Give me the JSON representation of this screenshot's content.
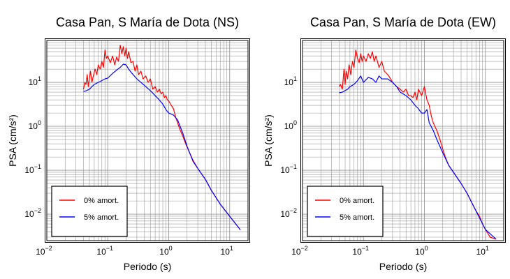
{
  "chart_data": [
    {
      "type": "line",
      "title": "Casa Pan, S María de Dota (NS)",
      "xlabel": "Periodo (s)",
      "ylabel": "PSA (cm/s²)",
      "xscale": "log",
      "yscale": "log",
      "xlim": [
        0.01,
        20
      ],
      "ylim": [
        0.0025,
        90
      ],
      "x_ticks": [
        {
          "v": 0.01,
          "b": "10",
          "e": "−2"
        },
        {
          "v": 0.1,
          "b": "10",
          "e": "−1"
        },
        {
          "v": 1,
          "b": "10",
          "e": "0"
        },
        {
          "v": 10,
          "b": "10",
          "e": "1"
        }
      ],
      "y_ticks": [
        {
          "v": 0.01,
          "b": "10",
          "e": "−2"
        },
        {
          "v": 0.1,
          "b": "10",
          "e": "−1"
        },
        {
          "v": 1,
          "b": "10",
          "e": "0"
        },
        {
          "v": 10,
          "b": "10",
          "e": "1"
        }
      ],
      "grid": true,
      "legend_position": "bottom-left",
      "series": [
        {
          "name": "0% amort.",
          "color": "#ff0000",
          "x": [
            0.04,
            0.042,
            0.044,
            0.046,
            0.048,
            0.05,
            0.052,
            0.055,
            0.058,
            0.062,
            0.066,
            0.07,
            0.075,
            0.08,
            0.085,
            0.09,
            0.095,
            0.1,
            0.11,
            0.12,
            0.13,
            0.14,
            0.15,
            0.16,
            0.17,
            0.18,
            0.19,
            0.2,
            0.21,
            0.22,
            0.24,
            0.26,
            0.28,
            0.3,
            0.32,
            0.35,
            0.38,
            0.42,
            0.46,
            0.5,
            0.55,
            0.6,
            0.65,
            0.7,
            0.75,
            0.8,
            0.85,
            0.9,
            0.95,
            1.0,
            1.1,
            1.2,
            1.3,
            1.4,
            1.5,
            1.7,
            1.9,
            2.2,
            2.5,
            3,
            4,
            5,
            7,
            10,
            15
          ],
          "values": [
            7,
            10,
            9,
            15,
            8,
            12,
            18,
            10,
            14,
            20,
            15,
            25,
            20,
            30,
            22,
            55,
            35,
            40,
            28,
            40,
            25,
            38,
            30,
            70,
            45,
            65,
            40,
            60,
            35,
            50,
            28,
            30,
            18,
            25,
            15,
            18,
            12,
            14,
            10,
            12,
            7,
            8,
            6,
            7,
            5.5,
            6,
            4.5,
            5,
            4,
            3.8,
            3,
            2.5,
            1.6,
            1.2,
            0.9,
            0.6,
            0.4,
            0.25,
            0.17,
            0.11,
            0.062,
            0.035,
            0.017,
            0.009,
            0.0044
          ]
        },
        {
          "name": "5% amort.",
          "color": "#0000ff",
          "x": [
            0.04,
            0.045,
            0.05,
            0.055,
            0.06,
            0.07,
            0.08,
            0.09,
            0.1,
            0.12,
            0.14,
            0.16,
            0.18,
            0.2,
            0.22,
            0.25,
            0.3,
            0.35,
            0.4,
            0.5,
            0.6,
            0.7,
            0.8,
            0.9,
            1.0,
            1.2,
            1.4,
            1.7,
            2.0,
            2.5,
            3,
            4,
            5,
            7,
            10,
            15
          ],
          "values": [
            6.2,
            6.5,
            7,
            8,
            9,
            10,
            11,
            12,
            12.5,
            16,
            19,
            22,
            26,
            25,
            20,
            16,
            12,
            10,
            8.5,
            6.5,
            5,
            4,
            3.2,
            2.4,
            2,
            1.8,
            1.4,
            0.7,
            0.35,
            0.16,
            0.11,
            0.062,
            0.035,
            0.017,
            0.009,
            0.0044
          ]
        }
      ]
    },
    {
      "type": "line",
      "title": "Casa Pan, S María de Dota (EW)",
      "xlabel": "Periodo (s)",
      "ylabel": "PSA (cm/s²)",
      "xscale": "log",
      "yscale": "log",
      "xlim": [
        0.01,
        20
      ],
      "ylim": [
        0.0025,
        90
      ],
      "x_ticks": [
        {
          "v": 0.01,
          "b": "10",
          "e": "−2"
        },
        {
          "v": 0.1,
          "b": "10",
          "e": "−1"
        },
        {
          "v": 1,
          "b": "10",
          "e": "0"
        },
        {
          "v": 10,
          "b": "10",
          "e": "1"
        }
      ],
      "y_ticks": [
        {
          "v": 0.01,
          "b": "10",
          "e": "−2"
        },
        {
          "v": 0.1,
          "b": "10",
          "e": "−1"
        },
        {
          "v": 1,
          "b": "10",
          "e": "0"
        },
        {
          "v": 10,
          "b": "10",
          "e": "1"
        }
      ],
      "grid": true,
      "legend_position": "bottom-left",
      "series": [
        {
          "name": "0% amort.",
          "color": "#ff0000",
          "x": [
            0.04,
            0.042,
            0.045,
            0.048,
            0.05,
            0.052,
            0.055,
            0.058,
            0.062,
            0.066,
            0.07,
            0.075,
            0.08,
            0.085,
            0.09,
            0.095,
            0.1,
            0.11,
            0.12,
            0.13,
            0.14,
            0.15,
            0.16,
            0.18,
            0.2,
            0.22,
            0.25,
            0.28,
            0.3,
            0.35,
            0.4,
            0.45,
            0.5,
            0.55,
            0.6,
            0.65,
            0.7,
            0.75,
            0.8,
            0.9,
            1.0,
            1.1,
            1.2,
            1.3,
            1.4,
            1.6,
            1.8,
            2.0,
            2.2,
            2.5,
            3,
            4,
            5,
            6,
            7,
            8,
            9,
            10,
            12,
            15
          ],
          "values": [
            8,
            9,
            7,
            20,
            9,
            18,
            12,
            25,
            15,
            30,
            22,
            55,
            35,
            28,
            45,
            30,
            40,
            30,
            45,
            35,
            50,
            30,
            40,
            22,
            30,
            18,
            15,
            12,
            10,
            8,
            7,
            6,
            7,
            5,
            5,
            4.5,
            6,
            4,
            7,
            5,
            8,
            4,
            3,
            1.7,
            1.2,
            0.8,
            0.5,
            0.3,
            0.2,
            0.13,
            0.09,
            0.05,
            0.03,
            0.018,
            0.012,
            0.009,
            0.006,
            0.0045,
            0.003,
            0.0027
          ]
        },
        {
          "name": "5% amort.",
          "color": "#0000ff",
          "x": [
            0.04,
            0.045,
            0.05,
            0.055,
            0.06,
            0.07,
            0.08,
            0.09,
            0.1,
            0.12,
            0.14,
            0.16,
            0.18,
            0.2,
            0.25,
            0.3,
            0.35,
            0.4,
            0.5,
            0.6,
            0.7,
            0.8,
            0.9,
            1.0,
            1.1,
            1.2,
            1.4,
            1.6,
            2.0,
            2.5,
            3,
            4,
            5,
            7,
            10,
            15
          ],
          "values": [
            5.8,
            6,
            6.5,
            7,
            8,
            9,
            11,
            14,
            10,
            13,
            12,
            10,
            14,
            12,
            12,
            10,
            8,
            6,
            5,
            4,
            3,
            2.5,
            2,
            2,
            2.4,
            1.2,
            0.8,
            0.5,
            0.25,
            0.13,
            0.09,
            0.05,
            0.03,
            0.012,
            0.0045,
            0.0027
          ]
        }
      ]
    }
  ]
}
